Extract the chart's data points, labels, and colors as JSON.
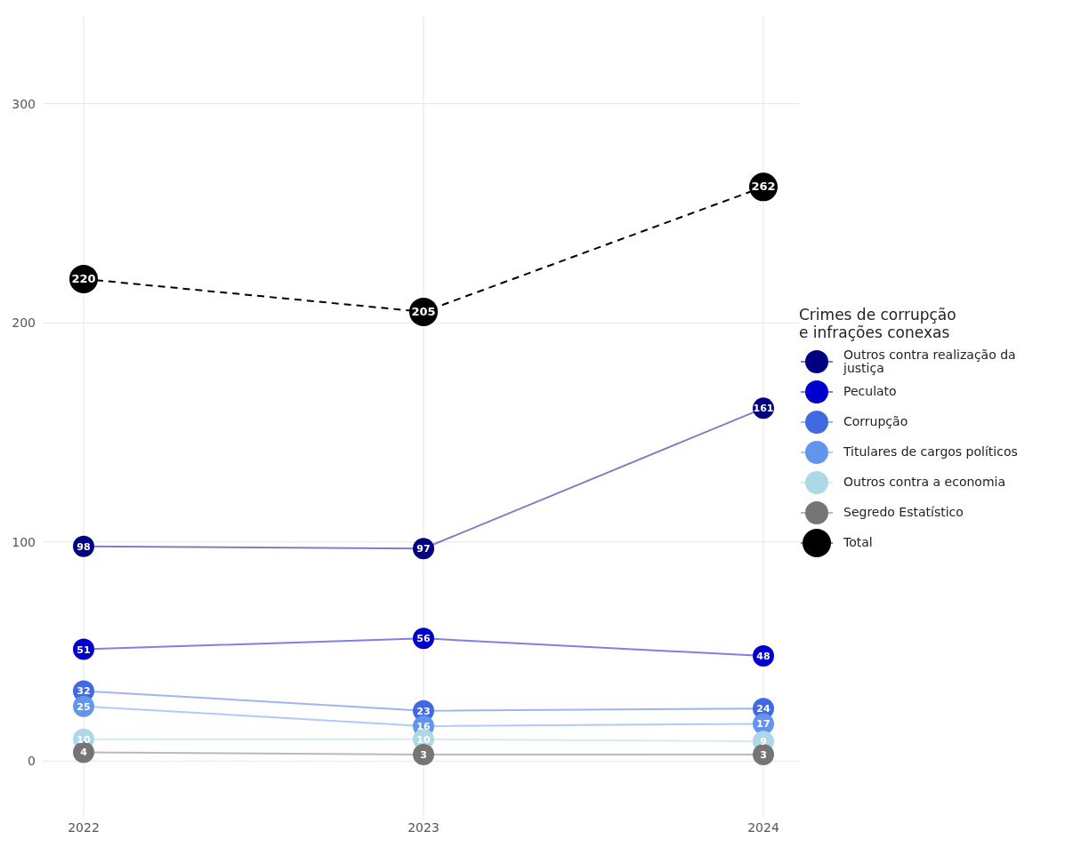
{
  "chart_data": {
    "type": "line",
    "legend_title": "Crimes de corrupção\ne infrações conexas",
    "categories": [
      "2022",
      "2023",
      "2024"
    ],
    "series": [
      {
        "name": "Outros contra realização da justiça",
        "color": "#000080",
        "values": [
          98,
          97,
          161
        ]
      },
      {
        "name": "Peculato",
        "color": "#0000cd",
        "values": [
          51,
          56,
          48
        ]
      },
      {
        "name": "Corrupção",
        "color": "#4169e1",
        "values": [
          32,
          23,
          24
        ]
      },
      {
        "name": "Titulares de cargos políticos",
        "color": "#6495ed",
        "values": [
          25,
          16,
          17
        ]
      },
      {
        "name": "Outros contra a economia",
        "color": "#add8e6",
        "values": [
          10,
          10,
          9
        ]
      },
      {
        "name": "Segredo Estatístico",
        "color": "#757575",
        "values": [
          4,
          3,
          3
        ]
      },
      {
        "name": "Total",
        "color": "#000000",
        "values": [
          220,
          205,
          262
        ],
        "line_style": "dashed"
      }
    ],
    "ylim": [
      -25,
      340
    ],
    "yticks": [
      0,
      100,
      200,
      300
    ],
    "grid": true,
    "legend": "right",
    "marker": "circle",
    "line_style": "solid",
    "data_labels": true
  }
}
